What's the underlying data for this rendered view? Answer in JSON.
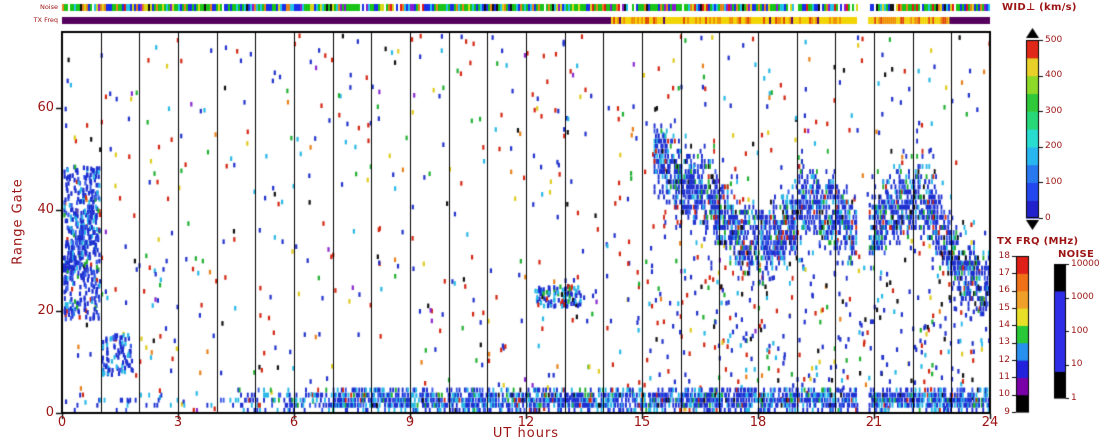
{
  "colors": {
    "ink": "#9c1414",
    "frame": "#000000",
    "background": "#ffffff"
  },
  "strips": {
    "noise_label": "Noise",
    "txfreq_label": "TX Freq",
    "noise_palette": [
      [
        "#17c417",
        0.36
      ],
      [
        "#1a2fe8",
        0.2
      ],
      [
        "#22c4e8",
        0.12
      ],
      [
        "#d8d818",
        0.1
      ],
      [
        "#e8821a",
        0.07
      ],
      [
        "#e01818",
        0.06
      ],
      [
        "#8a1ad0",
        0.05
      ],
      [
        "#111111",
        0.04
      ]
    ],
    "tx_segments": [
      {
        "hours": [
          0,
          14.2
        ],
        "mode": "solid",
        "color": "#56005e"
      },
      {
        "hours": [
          14.2,
          20.55
        ],
        "mode": "speckle",
        "palette": [
          [
            "#f2d400",
            0.6
          ],
          [
            "#f09000",
            0.26
          ],
          [
            "#e04800",
            0.09
          ],
          [
            "#56005e",
            0.05
          ]
        ]
      },
      {
        "hours": [
          20.85,
          22.95
        ],
        "mode": "speckle",
        "palette": [
          [
            "#f2d400",
            0.6
          ],
          [
            "#f09000",
            0.26
          ],
          [
            "#e04800",
            0.09
          ],
          [
            "#56005e",
            0.05
          ]
        ]
      },
      {
        "hours": [
          22.95,
          24
        ],
        "mode": "solid",
        "color": "#56005e"
      }
    ]
  },
  "legends": {
    "wid": {
      "title": "WID⊥ (km/s)",
      "min": 0,
      "max": 500,
      "ticks": [
        0,
        100,
        200,
        300,
        400,
        500
      ],
      "colors_bottom_to_top": [
        "#2222cc",
        "#2247ee",
        "#2879f0",
        "#28b6f0",
        "#28ddd0",
        "#28d878",
        "#2ec838",
        "#8ed828",
        "#e8d028",
        "#e02818"
      ]
    },
    "txfrq": {
      "title": "TX FRQ (MHz)",
      "ticks": [
        9,
        10,
        11,
        12,
        13,
        14,
        15,
        16,
        17,
        18
      ],
      "colors_bottom_to_top": [
        "#000000",
        "#7a00a8",
        "#2222dd",
        "#2890ee",
        "#28c838",
        "#e8e028",
        "#f0a028",
        "#f07018",
        "#e02018"
      ]
    },
    "noise": {
      "title": "NOISE",
      "ticks": [
        "1",
        "10",
        "100",
        "1000",
        "10000"
      ],
      "colors_bottom_to_top": [
        "#000000",
        "#2d2de8",
        "#2d2de8",
        "#2d2de8",
        "#000000"
      ]
    }
  },
  "chart_data": {
    "type": "heatmap",
    "xlabel": "UT hours",
    "ylabel": "Range Gate",
    "xticks": [
      0,
      3,
      6,
      9,
      12,
      15,
      18,
      21,
      24
    ],
    "yticks": [
      0,
      20,
      40,
      60
    ],
    "x_range": [
      0,
      24
    ],
    "y_range": [
      0,
      75
    ],
    "hour_gridlines": true,
    "data_gap_hours": [
      20.55,
      20.85
    ],
    "seed": 20240117,
    "features": [
      {
        "name": "background-scatter",
        "kind": "scatter",
        "hours": [
          0,
          24
        ],
        "gates": [
          0,
          74
        ],
        "count": 780,
        "palette": [
          [
            "#d42814",
            0.27
          ],
          [
            "#2233cc",
            0.3
          ],
          [
            "#2ab9e6",
            0.11
          ],
          [
            "#22b033",
            0.09
          ],
          [
            "#111111",
            0.07
          ],
          [
            "#e8821e",
            0.05
          ],
          [
            "#8a2bd0",
            0.03
          ],
          [
            "#e0cc22",
            0.08
          ]
        ]
      },
      {
        "name": "right-sector-extra-scatter",
        "kind": "scatter",
        "hours": [
          14.8,
          24
        ],
        "gates": [
          4,
          30
        ],
        "count": 230,
        "palette": [
          [
            "#2233cc",
            0.52
          ],
          [
            "#2ab9e6",
            0.16
          ],
          [
            "#d42814",
            0.12
          ],
          [
            "#22b033",
            0.08
          ],
          [
            "#111111",
            0.06
          ],
          [
            "#e0cc22",
            0.06
          ]
        ]
      },
      {
        "name": "dawn-scatter-blob",
        "kind": "scatter",
        "hours": [
          0.02,
          0.95
        ],
        "gates": [
          18,
          48
        ],
        "count": 380,
        "palette": [
          [
            "#1d2fd0",
            0.6
          ],
          [
            "#3a5ae8",
            0.18
          ],
          [
            "#2ab9e6",
            0.14
          ],
          [
            "#22b033",
            0.04
          ],
          [
            "#d42814",
            0.04
          ]
        ]
      },
      {
        "name": "dawn-core-band",
        "kind": "band",
        "points": [
          [
            0.05,
            27
          ],
          [
            0.35,
            31
          ],
          [
            0.6,
            36
          ],
          [
            0.88,
            41
          ]
        ],
        "halfwidth": 6,
        "density": 0.55,
        "jitter": 2,
        "palette": [
          [
            "#1d2fd0",
            0.66
          ],
          [
            "#3a5ae8",
            0.18
          ],
          [
            "#2ab9e6",
            0.16
          ]
        ]
      },
      {
        "name": "early-low-patch",
        "kind": "scatter",
        "hours": [
          1.0,
          1.8
        ],
        "gates": [
          7,
          15
        ],
        "count": 85,
        "palette": [
          [
            "#1d2fd0",
            0.6
          ],
          [
            "#2ab9e6",
            0.22
          ],
          [
            "#3a5ae8",
            0.18
          ]
        ]
      },
      {
        "name": "midday-low-patch",
        "kind": "scatter",
        "hours": [
          12.2,
          13.4
        ],
        "gates": [
          20.5,
          24.5
        ],
        "count": 105,
        "palette": [
          [
            "#1d2fd0",
            0.52
          ],
          [
            "#2ab9e6",
            0.24
          ],
          [
            "#111111",
            0.09
          ],
          [
            "#22b033",
            0.08
          ],
          [
            "#d42814",
            0.07
          ]
        ]
      },
      {
        "name": "ground-band-early",
        "kind": "band",
        "points": [
          [
            0.2,
            1.6
          ],
          [
            4.5,
            1.6
          ]
        ],
        "halfwidth": 2.0,
        "density": 0.1,
        "jitter": 0.6,
        "palette": [
          [
            "#1d2fd0",
            0.55
          ],
          [
            "#2ab9e6",
            0.3
          ],
          [
            "#3a5ae8",
            0.15
          ]
        ]
      },
      {
        "name": "ground-band-ramp",
        "kind": "band",
        "points": [
          [
            4.5,
            2.0
          ],
          [
            7.0,
            2.0
          ]
        ],
        "halfwidth": 2.3,
        "density": 0.38,
        "jitter": 0.6,
        "palette": [
          [
            "#1d2fd0",
            0.5
          ],
          [
            "#2ab9e6",
            0.28
          ],
          [
            "#3a5ae8",
            0.12
          ],
          [
            "#22b033",
            0.06
          ],
          [
            "#d42814",
            0.04
          ]
        ]
      },
      {
        "name": "ground-band-main",
        "kind": "band",
        "points": [
          [
            7.0,
            2.0
          ],
          [
            24,
            2.0
          ]
        ],
        "halfwidth": 2.4,
        "density": 0.8,
        "jitter": 0.6,
        "palette": [
          [
            "#1d2fd0",
            0.5
          ],
          [
            "#2ab9e6",
            0.26
          ],
          [
            "#3a5ae8",
            0.12
          ],
          [
            "#22b033",
            0.06
          ],
          [
            "#d42814",
            0.03
          ],
          [
            "#111111",
            0.03
          ]
        ]
      },
      {
        "name": "evening-scatter-band",
        "kind": "band",
        "points": [
          [
            15.3,
            49
          ],
          [
            16.0,
            45
          ],
          [
            16.8,
            41
          ],
          [
            17.5,
            34
          ],
          [
            18.2,
            33
          ],
          [
            18.8,
            37
          ],
          [
            19.3,
            41
          ],
          [
            19.9,
            39
          ],
          [
            20.5,
            35
          ],
          [
            21.0,
            36
          ],
          [
            21.6,
            40
          ],
          [
            22.1,
            42
          ],
          [
            22.6,
            38
          ],
          [
            23.0,
            31
          ],
          [
            23.4,
            26
          ],
          [
            23.8,
            24
          ],
          [
            24.0,
            27
          ]
        ],
        "halfwidth": 6.5,
        "density": 0.62,
        "jitter": 2.2,
        "palette": [
          [
            "#1d2fd0",
            0.55
          ],
          [
            "#3a5ae8",
            0.16
          ],
          [
            "#2ab9e6",
            0.14
          ],
          [
            "#22b033",
            0.06
          ],
          [
            "#d42814",
            0.04
          ],
          [
            "#111111",
            0.05
          ]
        ]
      },
      {
        "name": "evening-band-halo",
        "kind": "band",
        "points": [
          [
            15.3,
            49
          ],
          [
            16.0,
            45
          ],
          [
            16.8,
            41
          ],
          [
            17.5,
            34
          ],
          [
            18.2,
            33
          ],
          [
            18.8,
            37
          ],
          [
            19.3,
            41
          ],
          [
            19.9,
            39
          ],
          [
            20.5,
            35
          ],
          [
            21.0,
            36
          ],
          [
            21.6,
            40
          ],
          [
            22.1,
            42
          ],
          [
            22.6,
            38
          ],
          [
            23.0,
            31
          ],
          [
            23.4,
            26
          ],
          [
            23.8,
            24
          ],
          [
            24.0,
            27
          ]
        ],
        "halfwidth": 11,
        "density": 0.09,
        "jitter": 3,
        "palette": [
          [
            "#2233cc",
            0.58
          ],
          [
            "#2ab9e6",
            0.18
          ],
          [
            "#d42814",
            0.1
          ],
          [
            "#22b033",
            0.08
          ],
          [
            "#111111",
            0.06
          ]
        ]
      }
    ]
  }
}
